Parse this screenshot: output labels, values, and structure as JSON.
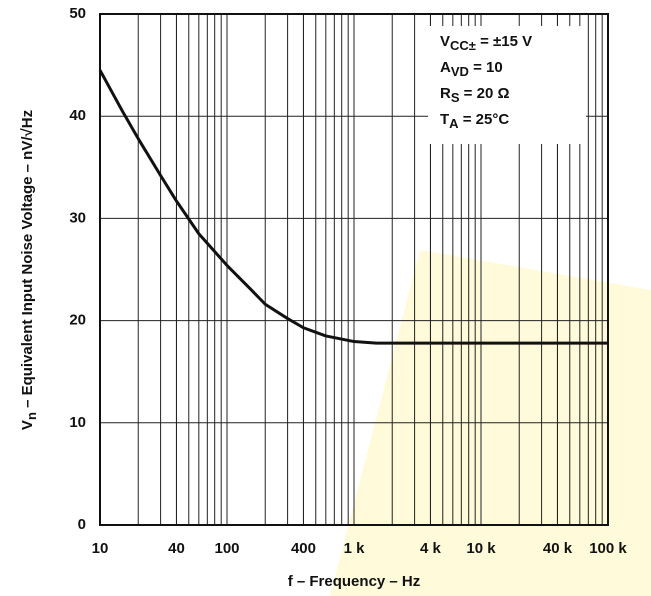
{
  "chart_data": {
    "type": "line",
    "xlabel": "f – Frequency – Hz",
    "ylabel": [
      "V",
      "n",
      " – Equivalent Input Noise Voltage – nV/√Hz"
    ],
    "annotations": [
      [
        "V",
        "CC±",
        " = ±15 V"
      ],
      [
        "A",
        "VD",
        " = 10"
      ],
      [
        "R",
        "S",
        " = 20 Ω"
      ],
      [
        "T",
        "A",
        " = 25°C"
      ]
    ],
    "x": [
      10,
      15,
      20,
      30,
      40,
      60,
      100,
      150,
      200,
      300,
      400,
      600,
      1000,
      1500,
      2000,
      100000
    ],
    "values": [
      44.5,
      40.5,
      37.8,
      34.2,
      31.7,
      28.5,
      25.4,
      23.2,
      21.6,
      20.2,
      19.3,
      18.5,
      17.95,
      17.8,
      17.8,
      17.8
    ],
    "color": "#111111",
    "xscale": "log",
    "xlim": [
      10,
      100000
    ],
    "ylim": [
      0,
      50
    ],
    "xticks": [
      {
        "value": 10,
        "label": "10"
      },
      {
        "value": 40,
        "label": "40"
      },
      {
        "value": 100,
        "label": "100"
      },
      {
        "value": 400,
        "label": "400"
      },
      {
        "value": 1000,
        "label": "1 k"
      },
      {
        "value": 4000,
        "label": "4 k"
      },
      {
        "value": 10000,
        "label": "10 k"
      },
      {
        "value": 40000,
        "label": "40 k"
      },
      {
        "value": 100000,
        "label": "100 k"
      }
    ],
    "yticks": [
      0,
      10,
      20,
      30,
      40,
      50
    ],
    "grid": true
  }
}
